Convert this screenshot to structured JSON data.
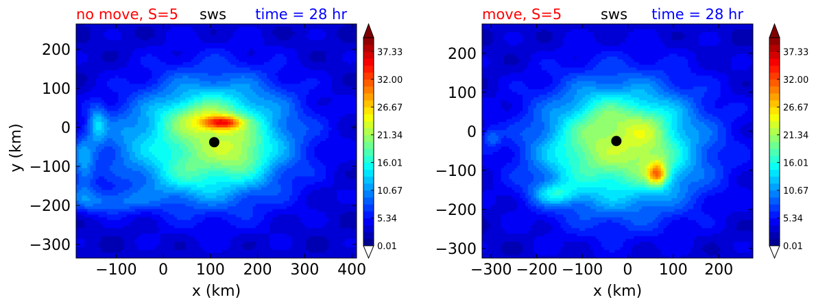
{
  "panels": [
    {
      "title_left": "no move, S=5",
      "title_center": "sws",
      "title_right": "time = 28 hr",
      "title_left_color": "#ff0000",
      "title_center_color": "#000000",
      "title_right_color": "#0000ff"
    },
    {
      "title_left": "move, S=5",
      "title_center": "sws",
      "title_right": "time = 28 hr",
      "title_left_color": "#ff0000",
      "title_center_color": "#000000",
      "title_right_color": "#0000ff"
    }
  ],
  "chart_data": [
    {
      "type": "heatmap",
      "title": "no move, S=5   sws   time = 28 hr",
      "xlabel": "x (km)",
      "ylabel": "y (km)",
      "xlim": [
        -185,
        410
      ],
      "ylim": [
        -335,
        265
      ],
      "xticks": [
        -100,
        0,
        100,
        200,
        300,
        400
      ],
      "yticks": [
        200,
        100,
        0,
        -100,
        -200,
        -300
      ],
      "xtick_labels": [
        "−100",
        "0",
        "100",
        "200",
        "300",
        "400"
      ],
      "ytick_labels": [
        "200",
        "100",
        "0",
        "−100",
        "−200",
        "−300"
      ],
      "center": {
        "x": 108,
        "y": -38
      },
      "field": {
        "cx": 108,
        "cy": -30,
        "rx": 210,
        "ry": 195,
        "peak": 18,
        "blobs": [
          {
            "x": 125,
            "y": 12,
            "sx": 28,
            "sy": 12,
            "a": 14
          },
          {
            "x": 75,
            "y": 25,
            "sx": 55,
            "sy": 30,
            "a": 5
          },
          {
            "x": 170,
            "y": -70,
            "sx": 35,
            "sy": 40,
            "a": 4
          },
          {
            "x": -140,
            "y": 10,
            "sx": 14,
            "sy": 35,
            "a": 7
          },
          {
            "x": -90,
            "y": -40,
            "sx": 50,
            "sy": 60,
            "a": 3
          },
          {
            "x": -120,
            "y": -190,
            "sx": 60,
            "sy": 22,
            "a": 6
          },
          {
            "x": -170,
            "y": -100,
            "sx": 18,
            "sy": 55,
            "a": 7
          },
          {
            "x": 40,
            "y": -130,
            "sx": 60,
            "sy": 40,
            "a": 3
          }
        ]
      },
      "colorbar": {
        "vmin": 0.01,
        "vmax": 40.0,
        "tick_labels": [
          "0.01",
          "5.34",
          "10.67",
          "16.01",
          "21.34",
          "26.67",
          "32.00",
          "37.33"
        ],
        "tick_values": [
          0.01,
          5.34,
          10.67,
          16.01,
          21.34,
          26.67,
          32.0,
          37.33
        ],
        "extend": "both"
      }
    },
    {
      "type": "heatmap",
      "title": "move, S=5   sws   time = 28 hr",
      "xlabel": "x (km)",
      "ylabel": "",
      "xlim": [
        -320,
        275
      ],
      "ylim": [
        -325,
        275
      ],
      "xticks": [
        -300,
        -200,
        -100,
        0,
        100,
        200
      ],
      "yticks": [
        200,
        100,
        0,
        -100,
        -200,
        -300
      ],
      "xtick_labels": [
        "−300",
        "−200",
        "−100",
        "0",
        "100",
        "200"
      ],
      "ytick_labels": [
        "200",
        "100",
        "0",
        "−100",
        "−200",
        "−300"
      ],
      "center": {
        "x": -25,
        "y": -25
      },
      "field": {
        "cx": -15,
        "cy": -40,
        "rx": 230,
        "ry": 210,
        "peak": 18,
        "blobs": [
          {
            "x": 65,
            "y": -110,
            "sx": 14,
            "sy": 20,
            "a": 12
          },
          {
            "x": 60,
            "y": -95,
            "sx": 35,
            "sy": 40,
            "a": 4
          },
          {
            "x": -160,
            "y": -160,
            "sx": 35,
            "sy": 20,
            "a": 7
          },
          {
            "x": 40,
            "y": 10,
            "sx": 40,
            "sy": 40,
            "a": 4
          },
          {
            "x": -60,
            "y": 40,
            "sx": 40,
            "sy": 40,
            "a": 3
          },
          {
            "x": -300,
            "y": -15,
            "sx": 14,
            "sy": 18,
            "a": 5
          },
          {
            "x": -120,
            "y": -60,
            "sx": 60,
            "sy": 50,
            "a": 2
          }
        ]
      },
      "colorbar": {
        "vmin": 0.01,
        "vmax": 40.0,
        "tick_labels": [
          "0.01",
          "5.34",
          "10.67",
          "16.01",
          "21.34",
          "26.67",
          "32.00",
          "37.33"
        ],
        "tick_values": [
          0.01,
          5.34,
          10.67,
          16.01,
          21.34,
          26.67,
          32.0,
          37.33
        ],
        "extend": "both"
      }
    }
  ]
}
